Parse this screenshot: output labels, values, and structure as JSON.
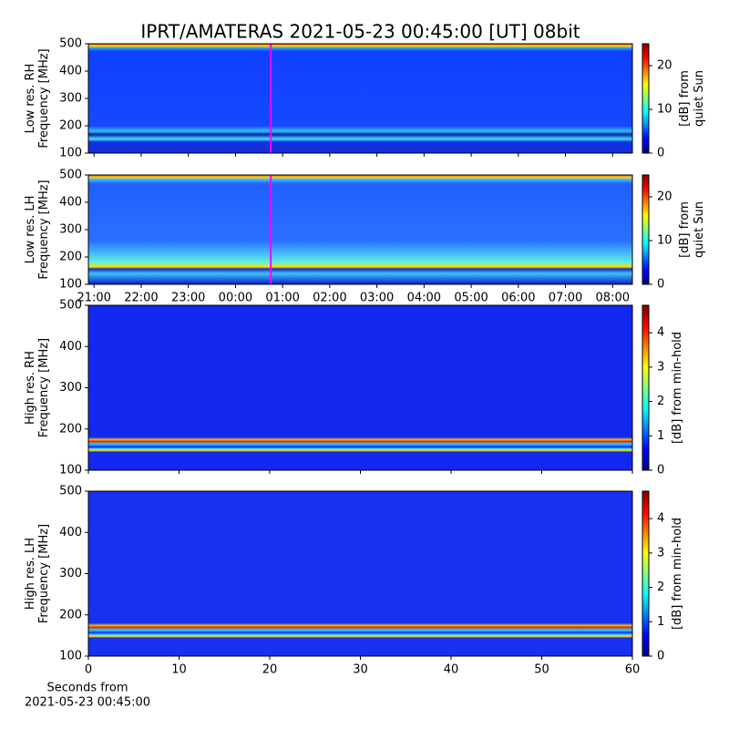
{
  "chart_data": [
    {
      "type": "heatmap",
      "title": "IPRT/AMATERAS 2021-05-23 00:45:00 [UT]   08bit",
      "ylabel": [
        "Low res. RH",
        "Frequency [MHz]"
      ],
      "ylim": [
        100,
        500
      ],
      "yticks": [
        100,
        200,
        300,
        400,
        500
      ],
      "xlim": [
        20.88,
        32.42
      ],
      "xticks": [
        21,
        22,
        23,
        24,
        25,
        26,
        27,
        28,
        29,
        30,
        31,
        32
      ],
      "xtick_labels": false,
      "marker_x": 24.75,
      "marker_color": "#ff00ff",
      "colormap": "jet",
      "clim": [
        0,
        25
      ],
      "cticks": [
        0,
        10,
        20
      ],
      "clabel": [
        "[dB] from",
        "quiet Sun"
      ]
    },
    {
      "type": "heatmap",
      "ylabel": [
        "Low res. LH",
        "Frequency [MHz]"
      ],
      "ylim": [
        100,
        500
      ],
      "yticks": [
        100,
        200,
        300,
        400,
        500
      ],
      "xlim": [
        20.88,
        32.42
      ],
      "xticks": [
        {
          "value": 21,
          "label": "21:00"
        },
        {
          "value": 22,
          "label": "22:00"
        },
        {
          "value": 23,
          "label": "23:00"
        },
        {
          "value": 24,
          "label": "00:00"
        },
        {
          "value": 25,
          "label": "01:00"
        },
        {
          "value": 26,
          "label": "02:00"
        },
        {
          "value": 27,
          "label": "03:00"
        },
        {
          "value": 28,
          "label": "04:00"
        },
        {
          "value": 29,
          "label": "05:00"
        },
        {
          "value": 30,
          "label": "06:00"
        },
        {
          "value": 31,
          "label": "07:00"
        },
        {
          "value": 32,
          "label": "08:00"
        }
      ],
      "xtick_labels": true,
      "marker_x": 24.75,
      "marker_color": "#ff00ff",
      "colormap": "jet",
      "clim": [
        0,
        25
      ],
      "cticks": [
        0,
        10,
        20
      ],
      "clabel": [
        "[dB] from",
        "quiet Sun"
      ]
    },
    {
      "type": "heatmap",
      "ylabel": [
        "High res. RH",
        "Frequency [MHz]"
      ],
      "ylim": [
        100,
        500
      ],
      "yticks": [
        100,
        200,
        300,
        400,
        500
      ],
      "xlim": [
        0,
        60
      ],
      "xticks": [
        0,
        10,
        20,
        30,
        40,
        50,
        60
      ],
      "xtick_labels": false,
      "colormap": "jet",
      "clim": [
        0,
        4.8
      ],
      "cticks": [
        0,
        1,
        2,
        3,
        4
      ],
      "clabel": [
        "[dB] from min-hold"
      ]
    },
    {
      "type": "heatmap",
      "ylabel": [
        "High res. LH",
        "Frequency [MHz]"
      ],
      "ylim": [
        100,
        500
      ],
      "yticks": [
        100,
        200,
        300,
        400,
        500
      ],
      "xlim": [
        0,
        60
      ],
      "xticks": [
        0,
        10,
        20,
        30,
        40,
        50,
        60
      ],
      "xtick_labels": true,
      "xlabel": [
        "Seconds from",
        "2021-05-23 00:45:00"
      ],
      "colormap": "jet",
      "clim": [
        0,
        4.8
      ],
      "cticks": [
        0,
        1,
        2,
        3,
        4
      ],
      "clabel": [
        "[dB] from min-hold"
      ]
    }
  ]
}
